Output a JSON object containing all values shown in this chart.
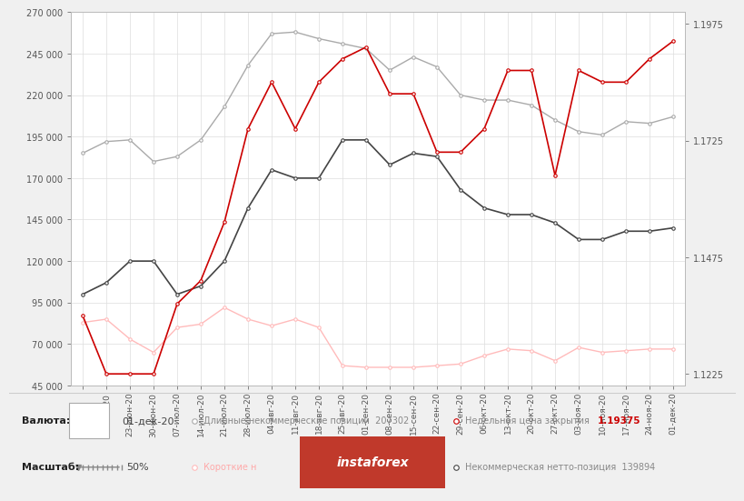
{
  "dates": [
    "",
    "16-июн-20",
    "23-июн-20",
    "30-июн-20",
    "07-июл-20",
    "14-июл-20",
    "21-июл-20",
    "28-июл-20",
    "04-авг-20",
    "11-авг-20",
    "18-авг-20",
    "25-авг-20",
    "01-сен-20",
    "08-сен-20",
    "15-сен-20",
    "22-сен-20",
    "29-сен-20",
    "06-окт-20",
    "13-окт-20",
    "20-окт-20",
    "27-окт-20",
    "03-ноя-20",
    "10-ноя-20",
    "17-ноя-20",
    "24-ноя-20",
    "01-дек-20"
  ],
  "long_positions": [
    185000,
    192000,
    193000,
    180000,
    183000,
    193000,
    213000,
    238000,
    257000,
    258000,
    254000,
    251000,
    248000,
    235000,
    243000,
    237000,
    220000,
    217000,
    217000,
    214000,
    205000,
    198000,
    196000,
    204000,
    203000,
    207000
  ],
  "short_positions": [
    83000,
    85000,
    73000,
    65000,
    80000,
    82000,
    92000,
    85000,
    81000,
    85000,
    80000,
    57000,
    56000,
    56000,
    56000,
    57000,
    58000,
    63000,
    67000,
    66000,
    60000,
    68000,
    65000,
    66000,
    67000,
    67000
  ],
  "weekly_close": [
    1.135,
    1.1225,
    1.1225,
    1.1225,
    1.1375,
    1.1425,
    1.155,
    1.175,
    1.185,
    1.175,
    1.185,
    1.19,
    1.1925,
    1.1825,
    1.1825,
    1.17,
    1.17,
    1.175,
    1.1875,
    1.1875,
    1.165,
    1.1875,
    1.185,
    1.185,
    1.19,
    1.1938
  ],
  "net_positions": [
    100000,
    107000,
    120000,
    120000,
    100000,
    105000,
    120000,
    152000,
    175000,
    170000,
    170000,
    193000,
    193000,
    178000,
    185000,
    183000,
    163000,
    152000,
    148000,
    148000,
    143000,
    133000,
    133000,
    138000,
    138000,
    140000
  ],
  "ylim_left": [
    45000,
    270000
  ],
  "ylim_right": [
    1.12,
    1.2
  ],
  "yticks_left": [
    45000,
    70000,
    95000,
    120000,
    145000,
    170000,
    195000,
    220000,
    245000,
    270000
  ],
  "yticks_right": [
    1.1225,
    1.1475,
    1.1725,
    1.1975
  ],
  "bg_color": "#f0f0f0",
  "chart_bg": "#ffffff",
  "long_color": "#aaaaaa",
  "short_color": "#ffbbbb",
  "weekly_close_color": "#cc0000",
  "net_color": "#444444",
  "footer_bg": "#e8e8e8",
  "legend_label_long": "Длинные некоммерческие позиции",
  "legend_label_short": "Короткие н",
  "legend_label_weekly": "Недельная цена закрытия",
  "legend_label_net": "Некоммерческая нетто-позиция",
  "legend_val_long": "207302",
  "legend_val_weekly": "1.19375",
  "legend_val_net": "139894",
  "footer_text2": "01-дек-20",
  "footer_text4": "50%",
  "instaforex_text": "instaforex",
  "instaforex_bg": "#c0392b"
}
